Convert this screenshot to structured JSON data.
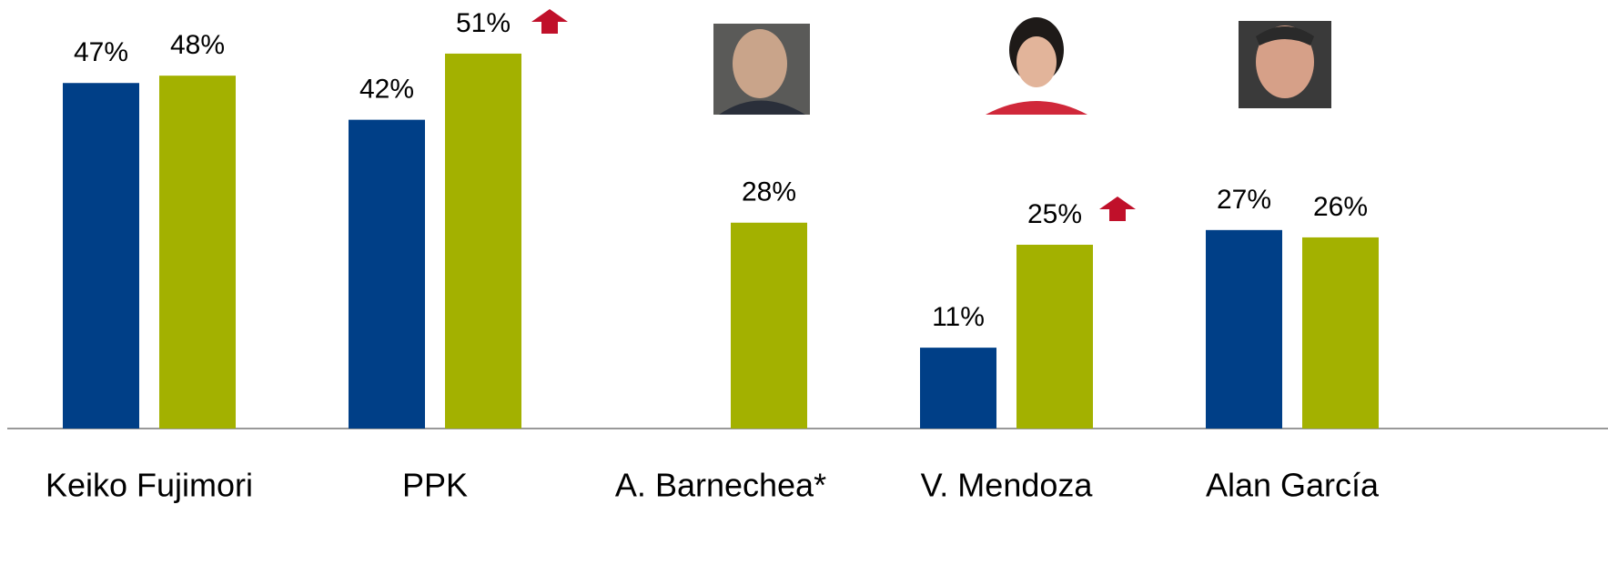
{
  "chart_data": {
    "type": "bar",
    "categories": [
      "Keiko Fujimori",
      "PPK",
      "A. Barnechea*",
      "V. Mendoza",
      "Alan García"
    ],
    "series": [
      {
        "color": "#003f87",
        "values": [
          47,
          42,
          null,
          11,
          27
        ],
        "value_labels": [
          "47%",
          "42%",
          null,
          "11%",
          "27%"
        ]
      },
      {
        "color": "#a3b100",
        "values": [
          48,
          51,
          28,
          25,
          26
        ],
        "value_labels": [
          "48%",
          "51%",
          "28%",
          "25%",
          "26%"
        ]
      }
    ]
  }
}
